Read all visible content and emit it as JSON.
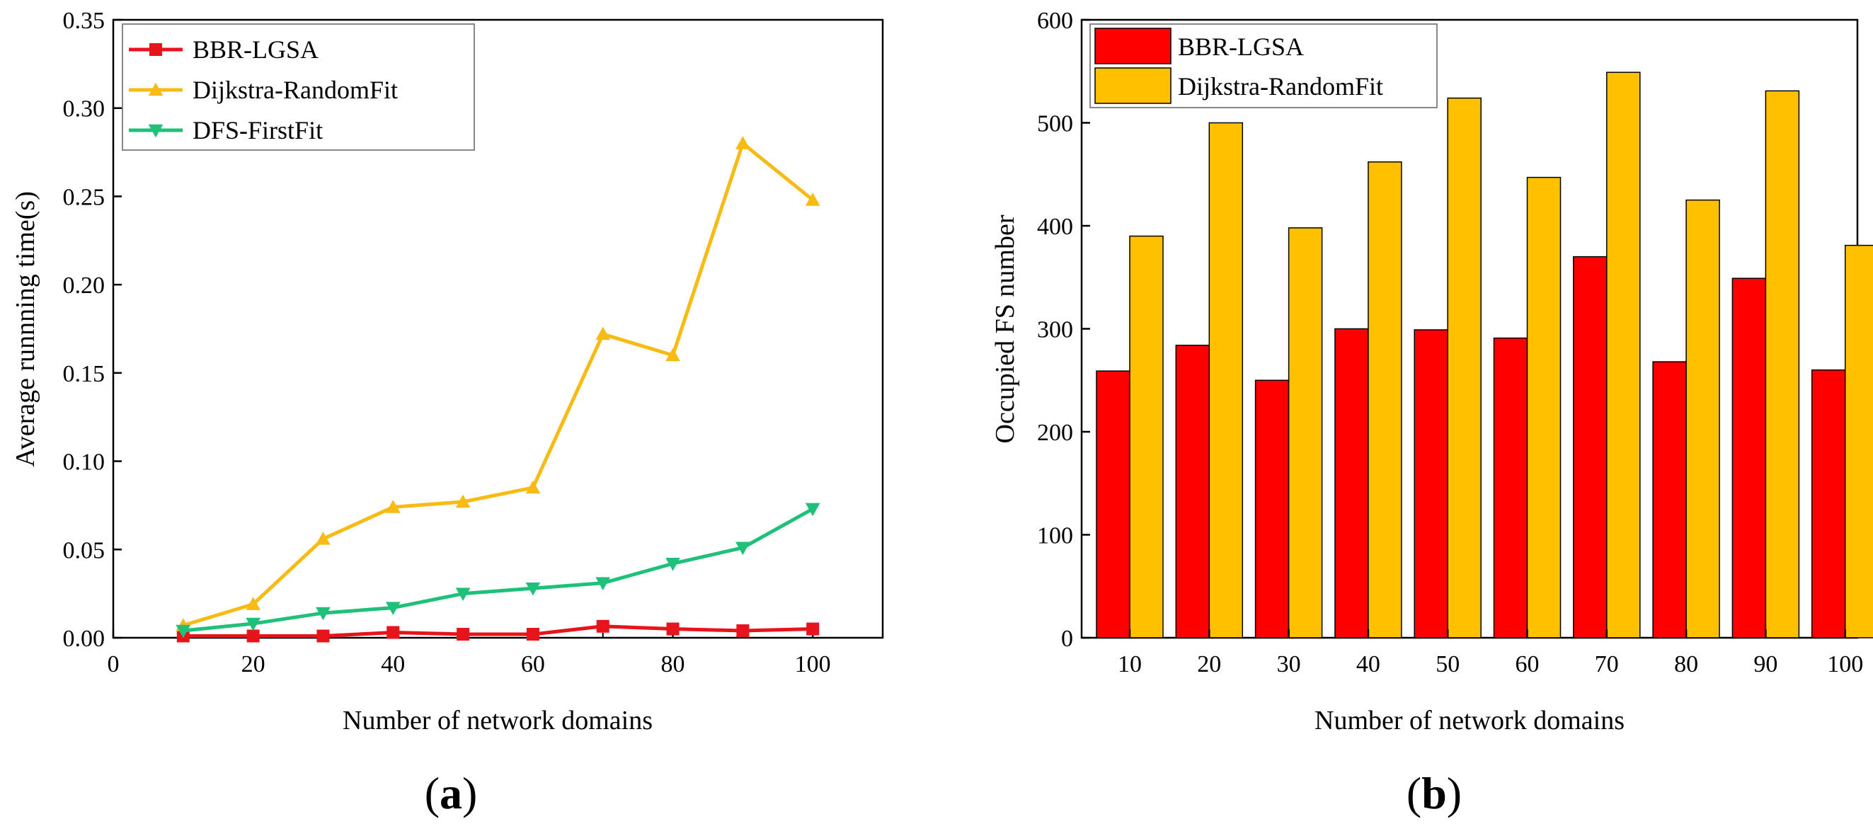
{
  "chart_data": [
    {
      "panel": "(a)",
      "type": "line",
      "title": "",
      "xlabel": "Number of network domains",
      "ylabel": "Average runnning time(s)",
      "xlim": [
        0,
        110
      ],
      "ylim": [
        0,
        0.35
      ],
      "xticks": [
        "0",
        "20",
        "40",
        "60",
        "80",
        "100"
      ],
      "xtick_values": [
        0,
        20,
        40,
        60,
        80,
        100
      ],
      "yticks": [
        "0.00",
        "0.05",
        "0.10",
        "0.15",
        "0.20",
        "0.25",
        "0.30",
        "0.35"
      ],
      "ytick_values": [
        0,
        0.05,
        0.1,
        0.15,
        0.2,
        0.25,
        0.3,
        0.35
      ],
      "grid": false,
      "legend": "top-left",
      "x": [
        10,
        20,
        30,
        40,
        50,
        60,
        70,
        80,
        90,
        100
      ],
      "series": [
        {
          "name": "BBR-LGSA",
          "color": "#e8141b",
          "marker": "square",
          "values": [
            0.001,
            0.001,
            0.001,
            0.003,
            0.002,
            0.002,
            0.0065,
            0.005,
            0.004,
            0.005
          ]
        },
        {
          "name": "Dijkstra-RandomFit",
          "color": "#f8bb14",
          "marker": "triangle-up",
          "values": [
            0.007,
            0.019,
            0.056,
            0.074,
            0.077,
            0.085,
            0.172,
            0.16,
            0.28,
            0.248
          ]
        },
        {
          "name": "DFS-FirstFit",
          "color": "#1fc07a",
          "marker": "triangle-down",
          "values": [
            0.004,
            0.008,
            0.014,
            0.017,
            0.025,
            0.028,
            0.031,
            0.042,
            0.051,
            0.073
          ]
        }
      ]
    },
    {
      "panel": "(b)",
      "type": "bar",
      "title": "",
      "xlabel": "Number of network domains",
      "ylabel": "Occupied FS number",
      "ylim": [
        0,
        600
      ],
      "yticks": [
        "0",
        "100",
        "200",
        "300",
        "400",
        "500",
        "600"
      ],
      "ytick_values": [
        0,
        100,
        200,
        300,
        400,
        500,
        600
      ],
      "grid": false,
      "legend": "top-left",
      "categories": [
        "10",
        "20",
        "30",
        "40",
        "50",
        "60",
        "70",
        "80",
        "90",
        "100"
      ],
      "series": [
        {
          "name": "BBR-LGSA",
          "color": "#fe0000",
          "values": [
            259,
            284,
            250,
            300,
            299,
            291,
            370,
            268,
            349,
            260
          ]
        },
        {
          "name": "Dijkstra-RandomFit",
          "color": "#ffc000",
          "values": [
            390,
            500,
            398,
            462,
            524,
            447,
            549,
            425,
            531,
            381
          ]
        }
      ]
    }
  ]
}
